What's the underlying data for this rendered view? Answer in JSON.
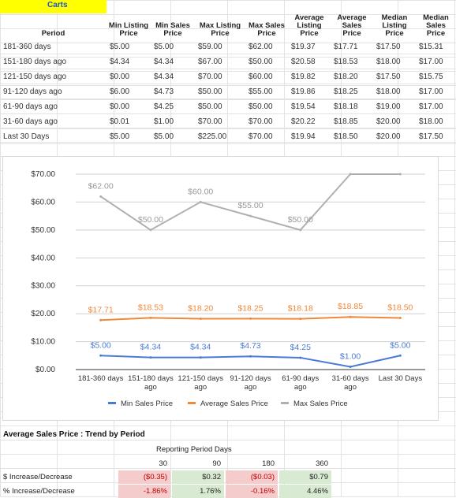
{
  "sheet": {
    "tab_label": "Carts"
  },
  "table": {
    "headers": [
      "Period",
      "Min Listing Price",
      "Min Sales Price",
      "Max Listing Price",
      "Max Sales Price",
      "Average Listing Price",
      "Average Sales Price",
      "Median Listing Price",
      "Median Sales Price"
    ],
    "rows": [
      [
        "181-360 days",
        "$5.00",
        "$5.00",
        "$59.00",
        "$62.00",
        "$19.37",
        "$17.71",
        "$17.50",
        "$15.31"
      ],
      [
        "151-180 days ago",
        "$4.34",
        "$4.34",
        "$67.00",
        "$50.00",
        "$20.58",
        "$18.53",
        "$18.00",
        "$17.00"
      ],
      [
        "121-150 days ago",
        "$0.00",
        "$4.34",
        "$70.00",
        "$60.00",
        "$19.82",
        "$18.20",
        "$17.50",
        "$15.75"
      ],
      [
        "91-120 days ago",
        "$6.00",
        "$4.73",
        "$50.00",
        "$55.00",
        "$19.86",
        "$18.25",
        "$18.00",
        "$17.00"
      ],
      [
        "61-90 days ago",
        "$0.00",
        "$4.25",
        "$50.00",
        "$50.00",
        "$19.54",
        "$18.18",
        "$19.00",
        "$17.00"
      ],
      [
        "31-60 days ago",
        "$0.01",
        "$1.00",
        "$70.00",
        "$70.00",
        "$20.22",
        "$18.85",
        "$20.00",
        "$18.00"
      ],
      [
        "Last 30 Days",
        "$5.00",
        "$5.00",
        "$225.00",
        "$70.00",
        "$19.94",
        "$18.50",
        "$20.00",
        "$17.50"
      ]
    ]
  },
  "chart_data": {
    "type": "line",
    "categories": [
      "181-360 days",
      "151-180 days ago",
      "121-150 days ago",
      "91-120 days ago",
      "61-90 days ago",
      "31-60 days ago",
      "Last 30 Days"
    ],
    "series": [
      {
        "name": "Min Sales Price",
        "values": [
          5.0,
          4.34,
          4.34,
          4.73,
          4.25,
          1.0,
          5.0
        ],
        "labels": [
          "$5.00",
          "$4.34",
          "$4.34",
          "$4.73",
          "$4.25",
          "$1.00",
          "$5.00"
        ],
        "color": "#4a7bd4"
      },
      {
        "name": "Average Sales Price",
        "values": [
          17.71,
          18.53,
          18.2,
          18.25,
          18.18,
          18.85,
          18.5
        ],
        "labels": [
          "$17.71",
          "$18.53",
          "$18.20",
          "$18.25",
          "$18.18",
          "$18.85",
          "$18.50"
        ],
        "color": "#f0883a"
      },
      {
        "name": "Max Sales Price",
        "values": [
          62.0,
          50.0,
          60.0,
          55.0,
          50.0,
          70.0,
          70.0
        ],
        "labels": [
          "$62.00",
          "$50.00",
          "$60.00",
          "$55.00",
          "$50.00",
          "",
          ""
        ],
        "color": "#b0b0b0"
      }
    ],
    "ylim": [
      0,
      70
    ],
    "yticks": [
      "$0.00",
      "$10.00",
      "$20.00",
      "$30.00",
      "$40.00",
      "$50.00",
      "$60.00",
      "$70.00"
    ],
    "grid": true,
    "legend": "bottom"
  },
  "trend": {
    "title": "Average Sales Price : Trend by Period",
    "period_label": "Reporting Period Days",
    "columns": [
      "30",
      "90",
      "180",
      "360"
    ],
    "rows": [
      {
        "label": "$ Increase/Decrease",
        "values": [
          "($0.35)",
          "$0.32",
          "($0.03)",
          "$0.79"
        ],
        "status": [
          "neg",
          "pos",
          "neg",
          "pos"
        ]
      },
      {
        "label": "% Increase/Decrease",
        "values": [
          "-1.86%",
          "1.76%",
          "-0.16%",
          "4.46%"
        ],
        "status": [
          "neg",
          "pos",
          "neg",
          "pos"
        ]
      }
    ]
  },
  "colors": {
    "positive_bg": "#d9ead3",
    "negative_bg": "#f4cccc",
    "negative_text": "#c00000",
    "tab_bg": "#ffff00",
    "tab_text": "#1a55c8"
  }
}
